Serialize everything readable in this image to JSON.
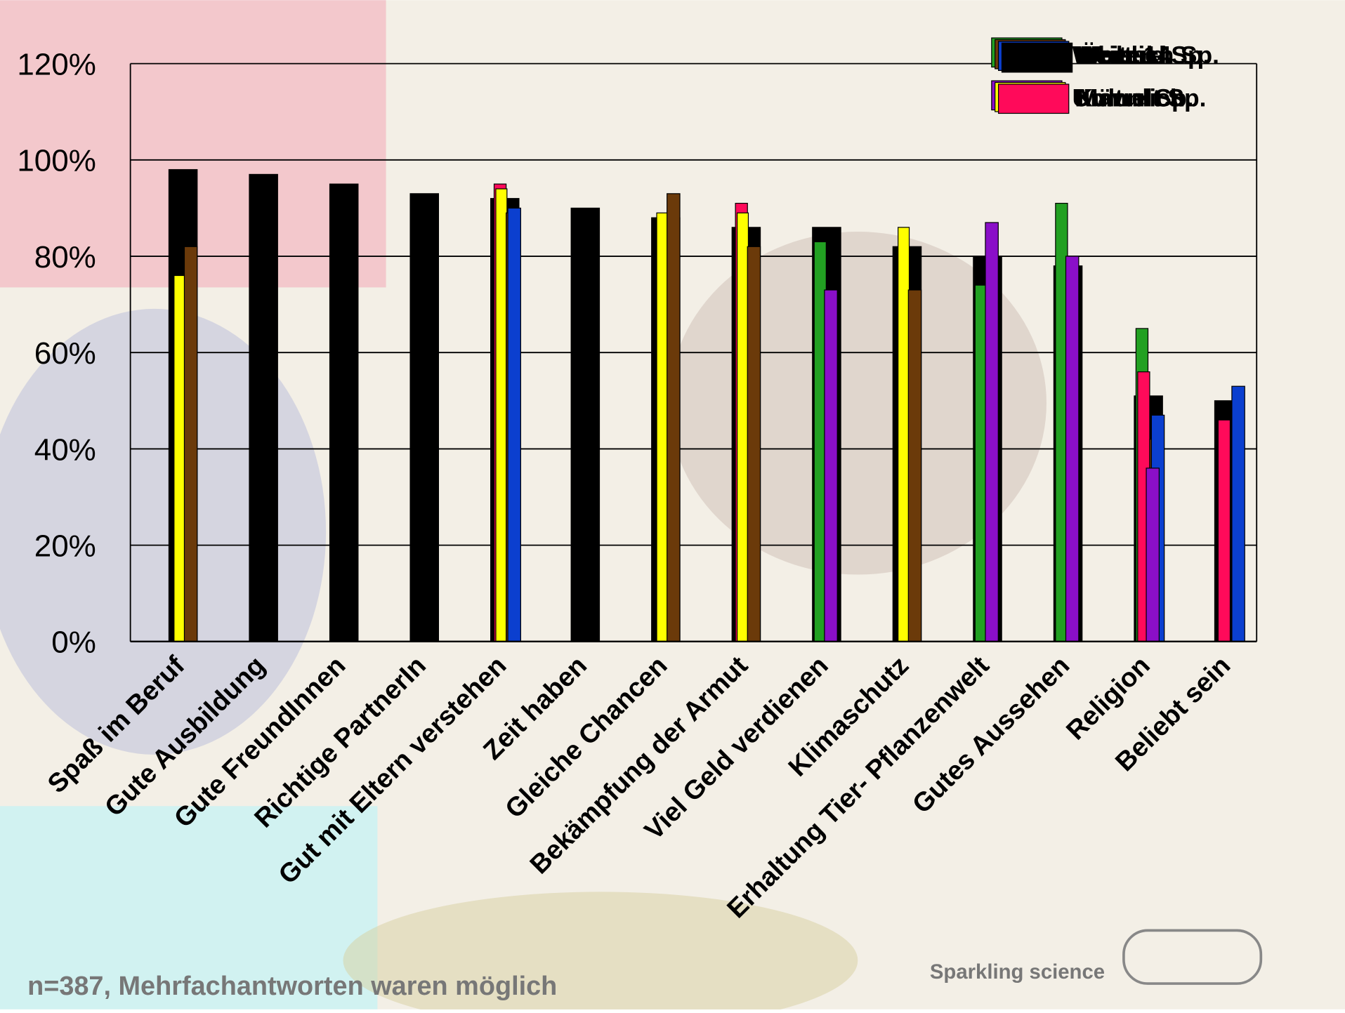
{
  "chart_data": {
    "type": "bar",
    "categories": [
      "Spaß im Beruf",
      "Gute Ausbildung",
      "Gute FreundInnen",
      "Richtige PartnerIn",
      "Gut mit Eltern verstehen",
      "Zeit haben",
      "Gleiche Chancen",
      "Bekämpfung der Armut",
      "Viel Geld verdienen",
      "Klimaschutz",
      "Erhaltung Tier- Pflanzenwelt",
      "Gutes Aussehen",
      "Religion",
      "Beliebt sein"
    ],
    "series": [
      {
        "name": "Weiblich",
        "color": "#22a022",
        "values": [
          null,
          null,
          null,
          null,
          null,
          null,
          null,
          null,
          83,
          null,
          74,
          91,
          65,
          null
        ]
      },
      {
        "name": "Weitere Sp.",
        "color": "#6b3a0a",
        "values": [
          82,
          null,
          null,
          null,
          89,
          null,
          93,
          82,
          null,
          73,
          null,
          null,
          42,
          null
        ]
      },
      {
        "name": "Wertekl. Sp.",
        "color": "#0b3fcf",
        "values": [
          null,
          null,
          null,
          null,
          90,
          null,
          null,
          null,
          null,
          null,
          null,
          null,
          47,
          53
        ]
      },
      {
        "name": "Über 14",
        "color": "#000000",
        "values": [
          98,
          97,
          95,
          93,
          92,
          90,
          88,
          86,
          86,
          82,
          80,
          78,
          51,
          50
        ]
      },
      {
        "name": "Umwelt Sp.",
        "color": "#8a0fc8",
        "values": [
          null,
          null,
          null,
          null,
          null,
          null,
          null,
          null,
          73,
          null,
          87,
          80,
          36,
          null
        ]
      },
      {
        "name": "Kultur Sp.",
        "color": "#ffff00",
        "values": [
          76,
          null,
          null,
          null,
          94,
          null,
          89,
          89,
          null,
          86,
          null,
          null,
          null,
          null
        ]
      },
      {
        "name": "Männlich",
        "color": "#ff0a5a",
        "values": [
          null,
          null,
          null,
          null,
          95,
          null,
          null,
          91,
          null,
          null,
          null,
          null,
          56,
          46
        ]
      }
    ],
    "ylim": [
      0,
      120
    ],
    "yticks": [
      {
        "value": 0,
        "label": "0%"
      },
      {
        "value": 20,
        "label": "20%"
      },
      {
        "value": 40,
        "label": "40%"
      },
      {
        "value": 60,
        "label": "60%"
      },
      {
        "value": 80,
        "label": "80%"
      },
      {
        "value": 100,
        "label": "100%"
      },
      {
        "value": 120,
        "label": "120%"
      }
    ],
    "grid": true,
    "legend": "top-right",
    "note": "n=387, Mehrfachantworten waren möglich",
    "brand": "Sparkling science"
  }
}
